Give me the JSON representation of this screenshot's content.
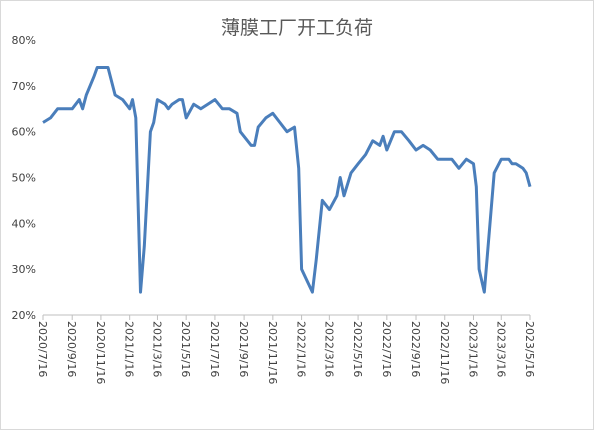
{
  "chart_data": {
    "type": "line",
    "title": "薄膜工厂开工负荷",
    "x": [
      "2020/7/16",
      "2020/8/1",
      "2020/8/16",
      "2020/9/1",
      "2020/9/16",
      "2020/10/1",
      "2020/10/8",
      "2020/10/16",
      "2020/11/1",
      "2020/11/8",
      "2020/11/16",
      "2020/12/1",
      "2020/12/16",
      "2021/1/1",
      "2021/1/16",
      "2021/1/22",
      "2021/1/29",
      "2021/2/8",
      "2021/2/16",
      "2021/3/1",
      "2021/3/8",
      "2021/3/16",
      "2021/4/1",
      "2021/4/8",
      "2021/4/16",
      "2021/5/1",
      "2021/5/8",
      "2021/5/16",
      "2021/6/1",
      "2021/6/16",
      "2021/7/1",
      "2021/7/16",
      "2021/8/1",
      "2021/8/16",
      "2021/9/1",
      "2021/9/8",
      "2021/10/1",
      "2021/10/8",
      "2021/10/16",
      "2021/11/1",
      "2021/11/16",
      "2021/12/1",
      "2021/12/16",
      "2022/1/1",
      "2022/1/10",
      "2022/1/16",
      "2022/2/8",
      "2022/2/16",
      "2022/3/1",
      "2022/3/16",
      "2022/4/1",
      "2022/4/8",
      "2022/4/16",
      "2022/5/1",
      "2022/5/16",
      "2022/6/1",
      "2022/6/16",
      "2022/7/1",
      "2022/7/8",
      "2022/7/16",
      "2022/8/1",
      "2022/8/16",
      "2022/9/1",
      "2022/9/16",
      "2022/10/1",
      "2022/10/16",
      "2022/11/1",
      "2022/11/16",
      "2022/12/1",
      "2022/12/16",
      "2023/1/1",
      "2023/1/16",
      "2023/1/22",
      "2023/1/28",
      "2023/2/8",
      "2023/2/16",
      "2023/3/1",
      "2023/3/16",
      "2023/4/1",
      "2023/4/8",
      "2023/4/16",
      "2023/5/1",
      "2023/5/8",
      "2023/5/16"
    ],
    "series": [
      {
        "name": "薄膜工厂开工负荷",
        "color": "#4a7ebb",
        "values": [
          62,
          63,
          65,
          65,
          65,
          67,
          65,
          68,
          72,
          74,
          74,
          74,
          68,
          67,
          65,
          67,
          63,
          25,
          35,
          60,
          62,
          67,
          66,
          65,
          66,
          67,
          67,
          63,
          66,
          65,
          66,
          67,
          65,
          65,
          64,
          60,
          57,
          57,
          61,
          63,
          64,
          62,
          60,
          61,
          52,
          30,
          25,
          32,
          45,
          43,
          46,
          50,
          46,
          51,
          53,
          55,
          58,
          57,
          59,
          56,
          60,
          60,
          58,
          56,
          57,
          56,
          54,
          54,
          54,
          52,
          54,
          53,
          48,
          30,
          25,
          35,
          51,
          54,
          54,
          53,
          53,
          52,
          51,
          48
        ]
      }
    ],
    "ylim": [
      20,
      80
    ],
    "yticks": [
      {
        "value": 20,
        "label": "20%"
      },
      {
        "value": 30,
        "label": "30%"
      },
      {
        "value": 40,
        "label": "40%"
      },
      {
        "value": 50,
        "label": "50%"
      },
      {
        "value": 60,
        "label": "60%"
      },
      {
        "value": 70,
        "label": "70%"
      },
      {
        "value": 80,
        "label": "80%"
      }
    ],
    "xlim": [
      "2020/7/16",
      "2023/5/16"
    ],
    "xticks": [
      "2020/7/16",
      "2020/9/16",
      "2020/11/16",
      "2021/1/16",
      "2021/3/16",
      "2021/5/16",
      "2021/7/16",
      "2021/9/16",
      "2021/11/16",
      "2022/1/16",
      "2022/3/16",
      "2022/5/16",
      "2022/7/16",
      "2022/9/16",
      "2022/11/16",
      "2023/1/16",
      "2023/3/16",
      "2023/5/16"
    ]
  }
}
